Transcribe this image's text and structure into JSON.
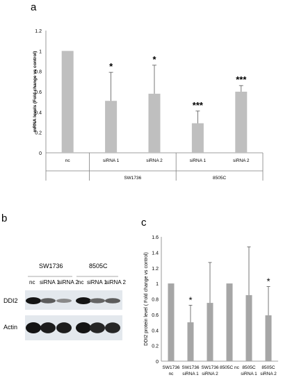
{
  "panels": {
    "a": "a",
    "b": "b",
    "c": "c"
  },
  "colors": {
    "bar": "#bfbfbf",
    "bar_c": "#a6a6a6",
    "axis": "#7f7f7f",
    "blot_bg": "#e3e8ed"
  },
  "chart_data": [
    {
      "id": "a",
      "type": "bar",
      "ylabel": "mRNA levels (Fold change vs control)",
      "ylim": [
        0,
        1.2
      ],
      "yticks": [
        "0",
        "0.2",
        "0.4",
        "0.6",
        "0.8",
        "1",
        "1.2"
      ],
      "categories": [
        "nc",
        "siRNA 1",
        "siRNA 2",
        "siRNA 1",
        "siRNA 2"
      ],
      "groups": [
        {
          "label": "",
          "span": [
            0,
            0
          ]
        },
        {
          "label": "SW1736",
          "span": [
            1,
            2
          ]
        },
        {
          "label": "8505C",
          "span": [
            3,
            4
          ]
        }
      ],
      "values": [
        1.0,
        0.51,
        0.58,
        0.29,
        0.6
      ],
      "errors": [
        0,
        0.28,
        0.28,
        0.12,
        0.06
      ],
      "annotations": [
        "",
        "*",
        "*",
        "***",
        "***"
      ],
      "grid": false
    },
    {
      "id": "c",
      "type": "bar",
      "ylabel": "DDI2 protein level ( Fold change vs control)",
      "ylim": [
        0,
        1.6
      ],
      "yticks": [
        "0",
        "0.2",
        "0.4",
        "0.6",
        "0.8",
        "1",
        "1.2",
        "1.4",
        "1.6"
      ],
      "categories": [
        [
          "SW1736",
          "nc"
        ],
        [
          "SW1736",
          "siRNA 1"
        ],
        [
          "SW1736",
          "siRNA 2"
        ],
        [
          "8505C nc"
        ],
        [
          "8505C",
          "siRNA 1"
        ],
        [
          "8505C",
          "siRNA 2"
        ]
      ],
      "values": [
        1.0,
        0.5,
        0.75,
        1.0,
        0.85,
        0.59
      ],
      "errors": [
        0,
        0.22,
        0.52,
        0,
        0.62,
        0.37
      ],
      "annotations": [
        "",
        "*",
        "",
        "",
        "",
        "*"
      ],
      "grid": false
    }
  ],
  "blot": {
    "cell_lines": [
      "SW1736",
      "8505C"
    ],
    "lanes": [
      "nc",
      "siRNA 1",
      "siRNA 2",
      "nc",
      "siRNA 1",
      "siRNA 2"
    ],
    "rows": [
      "DDI2",
      "Actin"
    ],
    "ddi2_intensity": [
      1.0,
      0.6,
      0.35,
      1.0,
      0.55,
      0.6
    ],
    "actin_intensity": [
      1.0,
      0.95,
      0.95,
      1.0,
      0.9,
      0.9
    ]
  }
}
